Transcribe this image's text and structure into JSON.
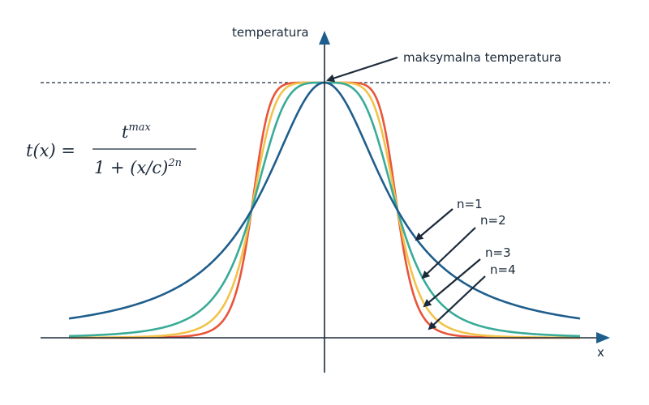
{
  "chart_data": {
    "type": "line",
    "ylabel": "temperatura",
    "xlabel": "x",
    "annotation": "maksymalna temperatura",
    "formula": {
      "lhs": "t(x) =",
      "numerator_base": "t",
      "numerator_sup": "max",
      "denominator_base": "1 + (x/c)",
      "denominator_sup": "2n"
    },
    "parameters": {
      "t_max": 1,
      "c": 1
    },
    "xlim": [
      -3.5,
      3.5
    ],
    "ylim": [
      0,
      1
    ],
    "grid": false,
    "reference_line": {
      "y": 1,
      "style": "dashed"
    },
    "series": [
      {
        "name": "n=1",
        "n": 1,
        "color": "#1f5e8c"
      },
      {
        "name": "n=2",
        "n": 2,
        "color": "#3aab98"
      },
      {
        "name": "n=3",
        "n": 3,
        "color": "#f2c34b"
      },
      {
        "name": "n=4",
        "n": 4,
        "color": "#e8553b"
      }
    ]
  }
}
